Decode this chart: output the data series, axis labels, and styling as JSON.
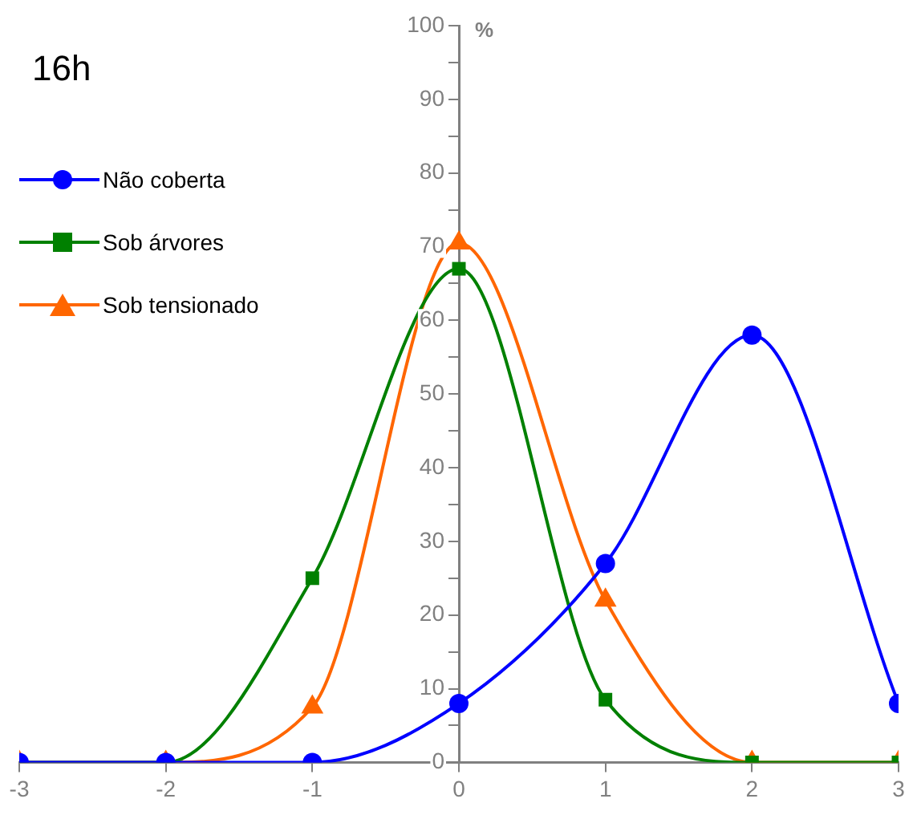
{
  "chart_data": {
    "type": "line",
    "title": "16h",
    "ylabel": "%",
    "x": [
      -3,
      -2,
      -1,
      0,
      1,
      2,
      3
    ],
    "series": [
      {
        "name": "Não coberta",
        "color": "#0000ff",
        "marker": "circle",
        "values": [
          0,
          0,
          0,
          8,
          27,
          58,
          8
        ]
      },
      {
        "name": "Sob árvores",
        "color": "#008000",
        "marker": "square",
        "values": [
          0,
          0,
          25,
          67,
          8.5,
          0,
          0
        ]
      },
      {
        "name": "Sob tensionado",
        "color": "#ff6600",
        "marker": "triangle",
        "values": [
          0,
          0,
          7.5,
          70.5,
          22,
          0,
          0
        ]
      }
    ],
    "xlim": [
      -3,
      3
    ],
    "xticks": [
      -3,
      -2,
      -1,
      0,
      1,
      2,
      3
    ],
    "ylim": [
      0,
      100
    ],
    "yticks": [
      0,
      {
        "value": 5,
        "label": null
      },
      10,
      {
        "value": 15,
        "label": null
      },
      20,
      {
        "value": 25,
        "label": null
      },
      30,
      {
        "value": 35,
        "label": null
      },
      40,
      {
        "value": 45,
        "label": null
      },
      50,
      {
        "value": 55,
        "label": null
      },
      60,
      {
        "value": 65,
        "label": null
      },
      70,
      {
        "value": 75,
        "label": null
      },
      80,
      {
        "value": 85,
        "label": null
      },
      90,
      {
        "value": 95,
        "label": null
      },
      100
    ],
    "grid": false,
    "legend": "left",
    "line_style": "solid"
  }
}
